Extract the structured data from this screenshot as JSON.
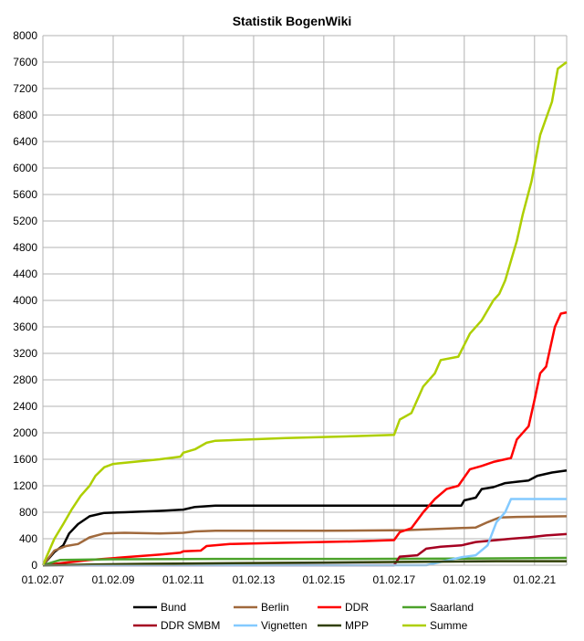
{
  "chart_data": {
    "type": "line",
    "title": "Statistik BogenWiki",
    "xlabel": "",
    "ylabel": "",
    "ylim": [
      0,
      8000
    ],
    "y_ticks": [
      0,
      400,
      800,
      1200,
      1600,
      2000,
      2400,
      2800,
      3200,
      3600,
      4000,
      4400,
      4800,
      5200,
      5600,
      6000,
      6400,
      6800,
      7200,
      7600,
      8000
    ],
    "x_tick_labels": [
      "01.02.07",
      "01.02.09",
      "01.02.11",
      "01.02.13",
      "01.02.15",
      "01.02.17",
      "01.02.19",
      "01.02.21"
    ],
    "xlim": [
      "2007-02-01",
      "2022-01-01"
    ],
    "grid": true,
    "legend_position": "bottom",
    "series": [
      {
        "name": "Bund",
        "color": "#000000",
        "points": [
          [
            "2007-02-01",
            0
          ],
          [
            "2007-06-01",
            200
          ],
          [
            "2007-09-01",
            300
          ],
          [
            "2007-11-01",
            480
          ],
          [
            "2008-02-01",
            620
          ],
          [
            "2008-06-01",
            740
          ],
          [
            "2008-11-01",
            790
          ],
          [
            "2009-06-01",
            800
          ],
          [
            "2010-06-01",
            820
          ],
          [
            "2011-02-01",
            840
          ],
          [
            "2011-06-01",
            880
          ],
          [
            "2012-01-01",
            900
          ],
          [
            "2015-01-01",
            900
          ],
          [
            "2017-01-01",
            900
          ],
          [
            "2019-01-01",
            900
          ],
          [
            "2019-02-01",
            980
          ],
          [
            "2019-06-01",
            1020
          ],
          [
            "2019-08-01",
            1150
          ],
          [
            "2019-12-01",
            1180
          ],
          [
            "2020-04-01",
            1240
          ],
          [
            "2020-08-01",
            1260
          ],
          [
            "2020-12-01",
            1280
          ],
          [
            "2021-03-01",
            1350
          ],
          [
            "2021-08-01",
            1400
          ],
          [
            "2022-01-01",
            1430
          ]
        ]
      },
      {
        "name": "Berlin",
        "color": "#a0693c",
        "points": [
          [
            "2007-02-01",
            0
          ],
          [
            "2007-06-01",
            220
          ],
          [
            "2007-10-01",
            290
          ],
          [
            "2008-02-01",
            320
          ],
          [
            "2008-06-01",
            420
          ],
          [
            "2008-11-01",
            480
          ],
          [
            "2009-06-01",
            490
          ],
          [
            "2010-06-01",
            480
          ],
          [
            "2011-02-01",
            490
          ],
          [
            "2011-06-01",
            510
          ],
          [
            "2012-01-01",
            520
          ],
          [
            "2015-01-01",
            520
          ],
          [
            "2017-06-01",
            530
          ],
          [
            "2018-06-01",
            550
          ],
          [
            "2019-06-01",
            570
          ],
          [
            "2019-10-01",
            650
          ],
          [
            "2020-02-01",
            720
          ],
          [
            "2020-08-01",
            730
          ],
          [
            "2022-01-01",
            740
          ]
        ]
      },
      {
        "name": "DDR",
        "color": "#ff0000",
        "points": [
          [
            "2007-02-01",
            0
          ],
          [
            "2008-06-01",
            80
          ],
          [
            "2009-06-01",
            120
          ],
          [
            "2010-06-01",
            160
          ],
          [
            "2011-01-01",
            190
          ],
          [
            "2011-02-01",
            210
          ],
          [
            "2011-08-01",
            220
          ],
          [
            "2011-10-01",
            290
          ],
          [
            "2012-06-01",
            320
          ],
          [
            "2014-01-01",
            340
          ],
          [
            "2016-01-01",
            360
          ],
          [
            "2017-02-01",
            380
          ],
          [
            "2017-04-01",
            500
          ],
          [
            "2017-08-01",
            560
          ],
          [
            "2017-12-01",
            800
          ],
          [
            "2018-04-01",
            1000
          ],
          [
            "2018-08-01",
            1150
          ],
          [
            "2018-12-01",
            1200
          ],
          [
            "2019-04-01",
            1450
          ],
          [
            "2019-08-01",
            1500
          ],
          [
            "2019-12-01",
            1560
          ],
          [
            "2020-04-01",
            1600
          ],
          [
            "2020-06-01",
            1620
          ],
          [
            "2020-08-01",
            1900
          ],
          [
            "2020-12-01",
            2100
          ],
          [
            "2021-02-01",
            2500
          ],
          [
            "2021-04-01",
            2900
          ],
          [
            "2021-06-01",
            3000
          ],
          [
            "2021-09-01",
            3600
          ],
          [
            "2021-11-01",
            3800
          ],
          [
            "2022-01-01",
            3820
          ]
        ]
      },
      {
        "name": "Saarland",
        "color": "#4ca22b",
        "points": [
          [
            "2007-02-01",
            0
          ],
          [
            "2007-08-01",
            80
          ],
          [
            "2009-01-01",
            90
          ],
          [
            "2012-01-01",
            95
          ],
          [
            "2016-01-01",
            95
          ],
          [
            "2019-01-01",
            100
          ],
          [
            "2022-01-01",
            110
          ]
        ]
      },
      {
        "name": "DDR SMBM",
        "color": "#a50021",
        "points": [
          [
            "2007-02-01",
            0
          ],
          [
            "2017-02-01",
            0
          ],
          [
            "2017-04-01",
            130
          ],
          [
            "2017-10-01",
            150
          ],
          [
            "2018-01-01",
            250
          ],
          [
            "2018-06-01",
            280
          ],
          [
            "2019-01-01",
            300
          ],
          [
            "2019-06-01",
            350
          ],
          [
            "2020-01-01",
            380
          ],
          [
            "2020-06-01",
            400
          ],
          [
            "2020-12-01",
            420
          ],
          [
            "2021-06-01",
            450
          ],
          [
            "2022-01-01",
            470
          ]
        ]
      },
      {
        "name": "Vignetten",
        "color": "#83caff",
        "points": [
          [
            "2007-02-01",
            0
          ],
          [
            "2018-01-01",
            0
          ],
          [
            "2018-06-01",
            50
          ],
          [
            "2019-01-01",
            120
          ],
          [
            "2019-06-01",
            150
          ],
          [
            "2019-10-01",
            300
          ],
          [
            "2020-01-01",
            650
          ],
          [
            "2020-04-01",
            800
          ],
          [
            "2020-06-01",
            1000
          ],
          [
            "2022-01-01",
            1000
          ]
        ]
      },
      {
        "name": "MPP",
        "color": "#314004",
        "points": [
          [
            "2007-02-01",
            0
          ],
          [
            "2010-01-01",
            20
          ],
          [
            "2015-01-01",
            40
          ],
          [
            "2020-01-01",
            60
          ],
          [
            "2022-01-01",
            60
          ]
        ]
      },
      {
        "name": "Summe",
        "color": "#aecf00",
        "points": [
          [
            "2007-02-01",
            0
          ],
          [
            "2007-06-01",
            400
          ],
          [
            "2007-09-01",
            620
          ],
          [
            "2007-12-01",
            850
          ],
          [
            "2008-03-01",
            1050
          ],
          [
            "2008-06-01",
            1200
          ],
          [
            "2008-08-01",
            1350
          ],
          [
            "2008-11-01",
            1480
          ],
          [
            "2009-02-01",
            1530
          ],
          [
            "2010-06-01",
            1600
          ],
          [
            "2011-01-01",
            1640
          ],
          [
            "2011-02-01",
            1700
          ],
          [
            "2011-06-01",
            1750
          ],
          [
            "2011-10-01",
            1850
          ],
          [
            "2012-01-01",
            1880
          ],
          [
            "2014-01-01",
            1920
          ],
          [
            "2016-01-01",
            1950
          ],
          [
            "2017-02-01",
            1970
          ],
          [
            "2017-04-01",
            2200
          ],
          [
            "2017-08-01",
            2300
          ],
          [
            "2017-12-01",
            2700
          ],
          [
            "2018-04-01",
            2900
          ],
          [
            "2018-06-01",
            3100
          ],
          [
            "2018-12-01",
            3150
          ],
          [
            "2019-04-01",
            3500
          ],
          [
            "2019-08-01",
            3700
          ],
          [
            "2019-12-01",
            4000
          ],
          [
            "2020-02-01",
            4100
          ],
          [
            "2020-04-01",
            4300
          ],
          [
            "2020-06-01",
            4600
          ],
          [
            "2020-08-01",
            4900
          ],
          [
            "2020-10-01",
            5300
          ],
          [
            "2021-01-01",
            5800
          ],
          [
            "2021-04-01",
            6500
          ],
          [
            "2021-08-01",
            7000
          ],
          [
            "2021-10-01",
            7500
          ],
          [
            "2022-01-01",
            7600
          ]
        ]
      }
    ],
    "legend": [
      [
        "Bund",
        "Berlin",
        "DDR",
        "Saarland"
      ],
      [
        "DDR SMBM",
        "Vignetten",
        "MPP",
        "Summe"
      ]
    ]
  }
}
